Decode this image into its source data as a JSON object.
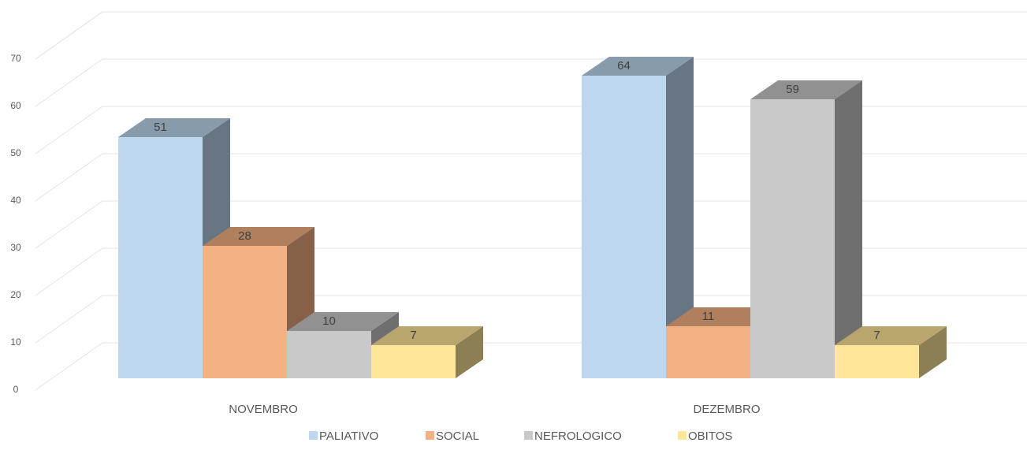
{
  "chart_data": {
    "type": "bar3d",
    "categories": [
      "NOVEMBRO",
      "DEZEMBRO"
    ],
    "series": [
      {
        "name": "PALIATIVO",
        "color": "#bdd7ee",
        "values": [
          51,
          64
        ]
      },
      {
        "name": "SOCIAL",
        "color": "#f4b183",
        "values": [
          28,
          11
        ]
      },
      {
        "name": "NEFROLOGICO",
        "color": "#c9c9c9",
        "values": [
          10,
          59
        ]
      },
      {
        "name": "OBITOS",
        "color": "#ffe699",
        "values": [
          7,
          7
        ]
      }
    ],
    "ylim": [
      0,
      80
    ],
    "yticks": [
      0,
      10,
      20,
      30,
      40,
      50,
      60,
      70
    ],
    "grid": true,
    "legend": "bottom"
  }
}
